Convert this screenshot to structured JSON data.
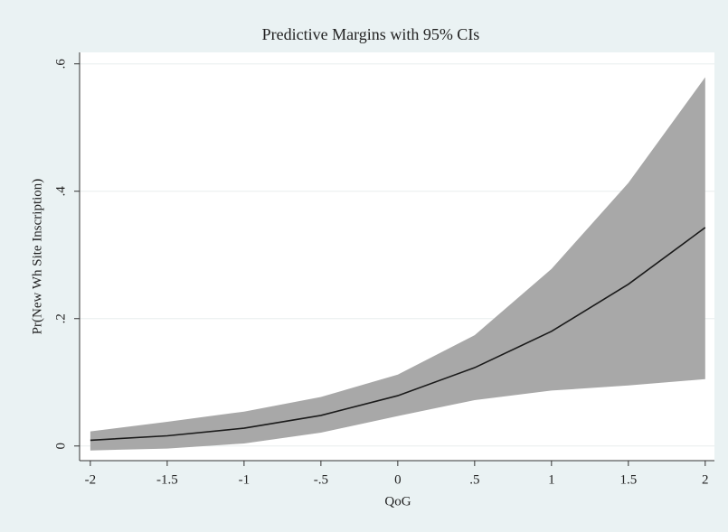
{
  "chart_data": {
    "type": "line",
    "title": "Predictive Margins with 95% CIs",
    "x_label": "QoG",
    "y_label": "Pr(New Wh Site Inscription)",
    "x": [
      -2,
      -1.5,
      -1,
      -0.5,
      0,
      0.5,
      1,
      1.5,
      2
    ],
    "line": {
      "color": "#1a1a1a",
      "values": [
        0.009,
        0.016,
        0.028,
        0.048,
        0.079,
        0.123,
        0.18,
        0.254,
        0.343
      ]
    },
    "ci": {
      "color": "#a8a8a8",
      "upper": [
        0.023,
        0.038,
        0.054,
        0.077,
        0.112,
        0.174,
        0.278,
        0.413,
        0.579
      ],
      "lower": [
        -0.007,
        -0.004,
        0.004,
        0.021,
        0.047,
        0.072,
        0.087,
        0.095,
        0.105
      ]
    },
    "xlim": [
      -2.07,
      2.06
    ],
    "ylim": [
      -0.023,
      0.618
    ],
    "xticks": [
      -2,
      -1.5,
      -1,
      {
        "value": -0.5,
        "label": "-.5"
      },
      0,
      {
        "value": 0.5,
        "label": ".5"
      },
      1,
      1.5,
      2
    ],
    "yticks": [
      0,
      {
        "value": 0.2,
        "label": ".2"
      },
      {
        "value": 0.4,
        "label": ".4"
      },
      {
        "value": 0.6,
        "label": ".6"
      }
    ],
    "grid": true
  }
}
